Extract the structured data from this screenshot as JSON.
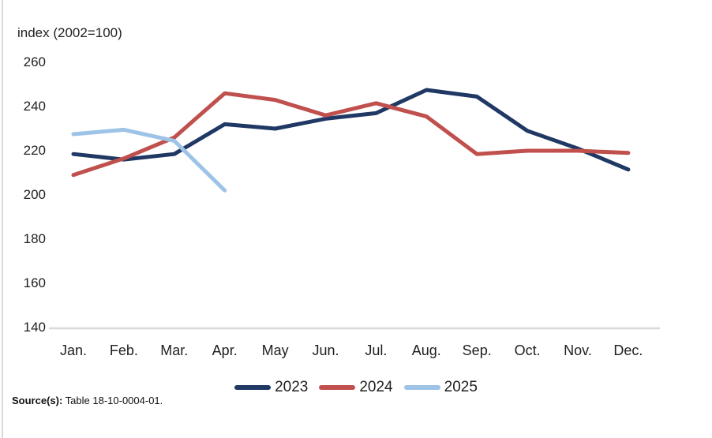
{
  "chart_data": {
    "type": "line",
    "title": "index (2002=100)",
    "ylabel": "index (2002=100)",
    "xlabel": "",
    "categories": [
      "Jan.",
      "Feb.",
      "Mar.",
      "Apr.",
      "May",
      "Jun.",
      "Jul.",
      "Aug.",
      "Sep.",
      "Oct.",
      "Nov.",
      "Dec."
    ],
    "series": [
      {
        "name": "2023",
        "color": "#1f3864",
        "values": [
          218.5,
          216,
          218.5,
          232,
          230,
          234.5,
          237,
          247.5,
          244.5,
          229,
          221,
          211.5
        ]
      },
      {
        "name": "2024",
        "color": "#c0504d",
        "values": [
          209,
          216.5,
          226,
          246,
          243,
          236,
          241.5,
          235.5,
          218.5,
          220,
          220,
          219
        ]
      },
      {
        "name": "2025",
        "color": "#9dc3e6",
        "values": [
          227.5,
          229.5,
          224.5,
          202
        ]
      }
    ],
    "ylim": [
      140,
      260
    ],
    "yticks": [
      140,
      160,
      180,
      200,
      220,
      240,
      260
    ],
    "grid": false,
    "legend_position": "bottom"
  },
  "source": {
    "label": "Source(s):",
    "text": " Table 18-10-0004-01."
  },
  "colors": {
    "axis_line": "#d9d9d9",
    "frame_border": "#d9d9d9",
    "text": "#1f1f1f",
    "series_2023": "#1f3864",
    "series_2024": "#c0504d",
    "series_2025": "#9dc3e6"
  }
}
